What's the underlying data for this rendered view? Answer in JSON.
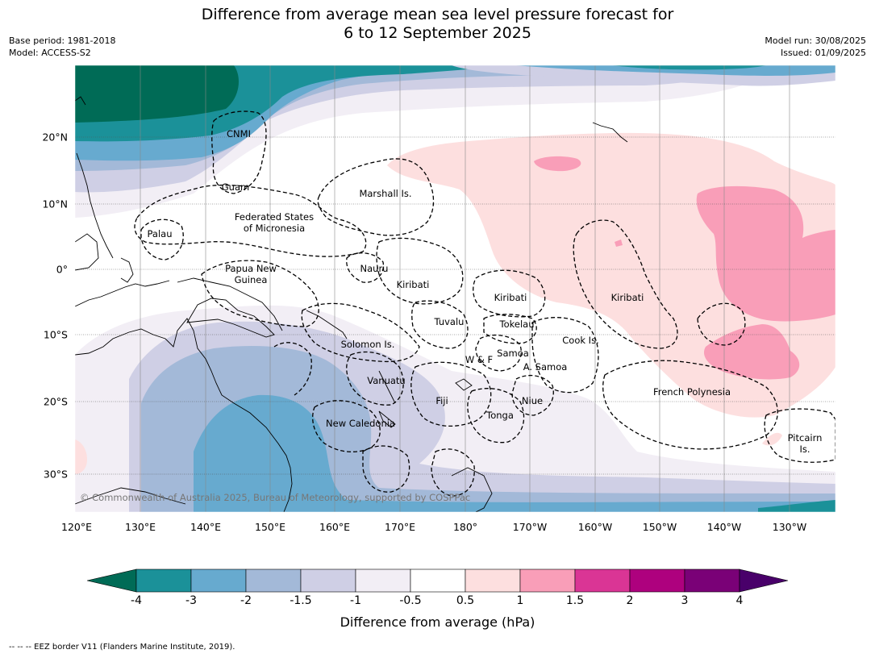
{
  "header": {
    "title_line1": "Difference from average mean sea level pressure forecast for",
    "title_line2": "6 to 12 September 2025",
    "base_period": "Base period: 1981-2018",
    "model": "Model: ACCESS-S2",
    "model_run": "Model run: 30/08/2025",
    "issued": "Issued: 01/09/2025"
  },
  "map": {
    "longitudes": [
      "120°E",
      "130°E",
      "140°E",
      "150°E",
      "160°E",
      "170°E",
      "180°",
      "170°W",
      "160°W",
      "150°W",
      "140°W",
      "130°W"
    ],
    "latitudes": [
      "20°N",
      "10°N",
      "0°",
      "10°S",
      "20°S",
      "30°S"
    ],
    "places": {
      "cnmi": "CNMI",
      "guam": "Guam",
      "marshall": "Marshall Is.",
      "fsm": "Federated States\nof Micronesia",
      "palau": "Palau",
      "nauru": "Nauru",
      "png": "Papua New\nGuinea",
      "kiribati_w": "Kiribati",
      "kiribati_c": "Kiribati",
      "kiribati_e": "Kiribati",
      "tuvalu": "Tuvalu",
      "tokelau": "Tokelau",
      "cook": "Cook Is.",
      "solomon": "Solomon Is.",
      "samoa": "Samoa",
      "wf": "W & F",
      "asamoa": "A. Samoa",
      "vanuatu": "Vanuatu",
      "fiji": "Fiji",
      "niue": "Niue",
      "tonga": "Tonga",
      "newcal": "New Caledonia",
      "frpoly": "French Polynesia",
      "pitcairn": "Pitcairn\nIs."
    },
    "credit": "© Commonwealth of Australia 2025, Bureau of Meteorology, supported by COSPPac"
  },
  "legend": {
    "title": "Difference from average (hPa)",
    "ticks": [
      "-4",
      "-3",
      "-2",
      "-1.5",
      "-1",
      "-0.5",
      "0.5",
      "1",
      "1.5",
      "2",
      "3",
      "4"
    ],
    "colors": {
      "lt_-4": "#006b56",
      "-4_-3": "#1b9199",
      "-3_-2": "#67aacf",
      "-2_-1.5": "#a3b9d8",
      "-1.5_-1": "#cfcfe5",
      "-1_-0.5": "#f2eef5",
      "-0.5_0.5": "#ffffff",
      "0.5_1": "#fddfdf",
      "1_1.5": "#f99eb8",
      "1.5_2": "#da3595",
      "2_3": "#ae017e",
      "3_4": "#7a0177",
      "gt_4": "#49006a"
    }
  },
  "footer": "--  --  -- EEZ border V11 (Flanders Marine Institute, 2019)."
}
